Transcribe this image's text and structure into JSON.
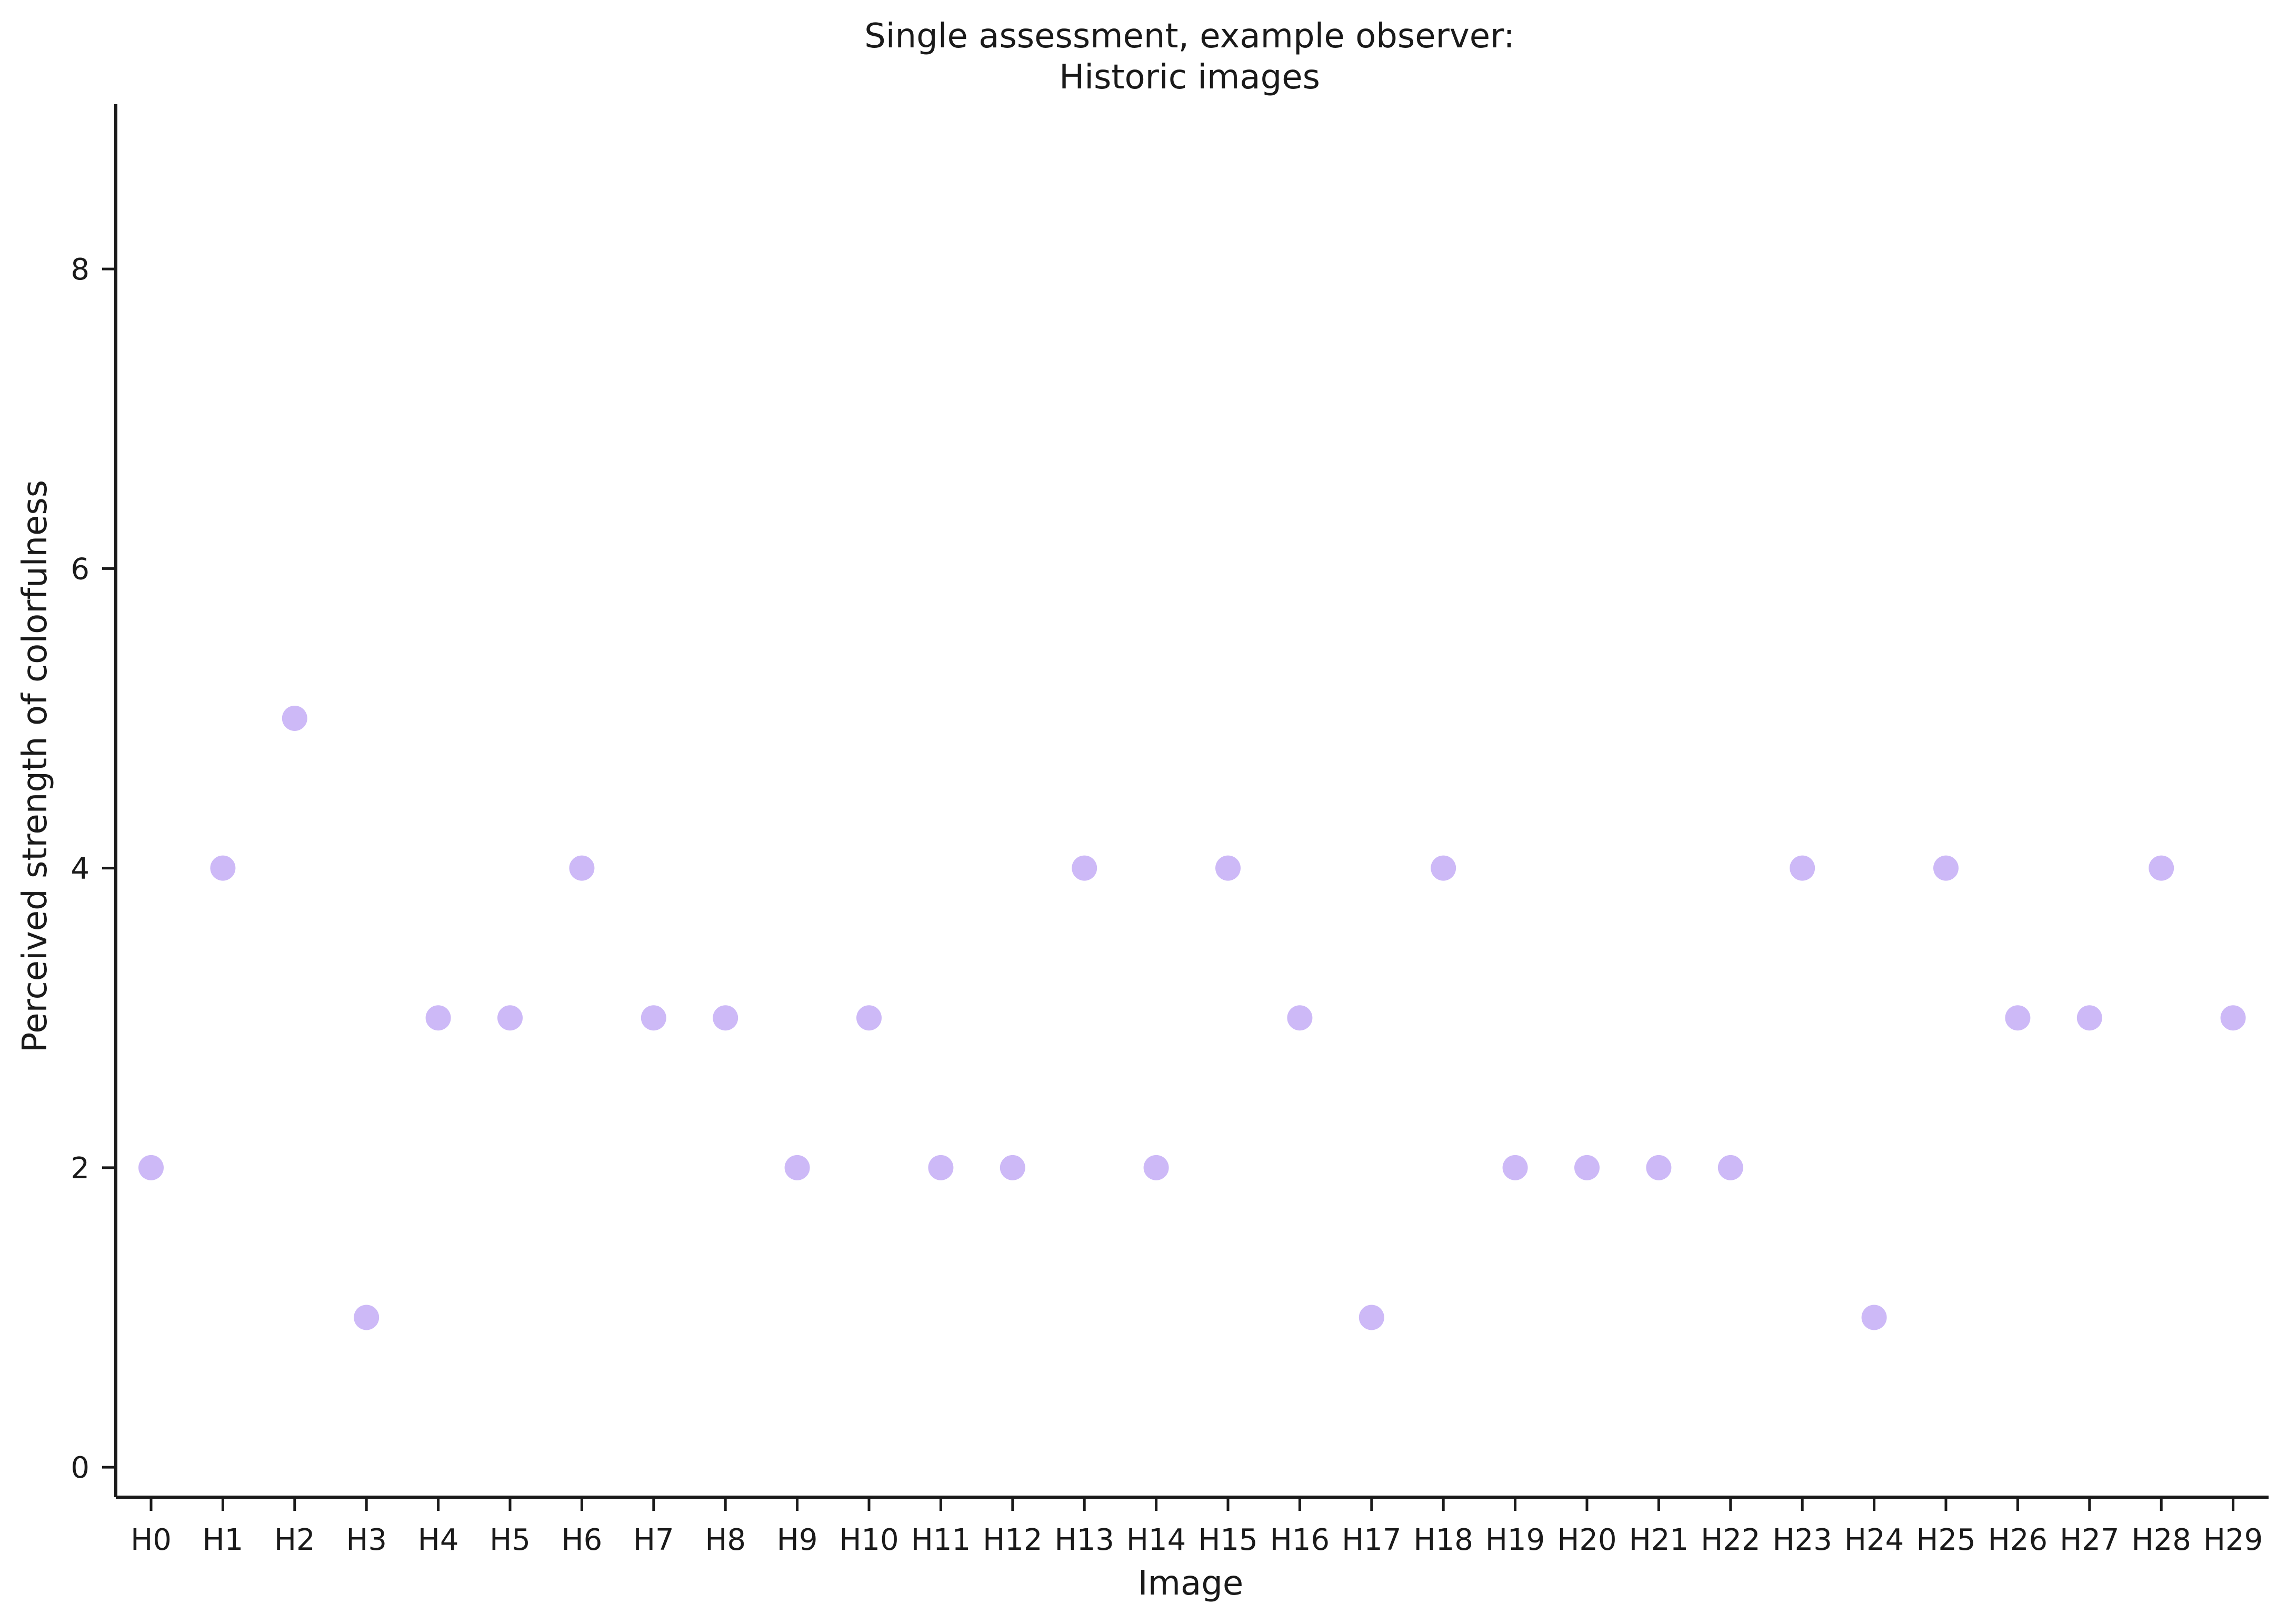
{
  "chart_data": {
    "type": "scatter",
    "title_lines": [
      "Single assessment, example observer:",
      "Historic images"
    ],
    "xlabel": "Image",
    "ylabel": "Perceived strength of colorfulness",
    "categories": [
      "H0",
      "H1",
      "H2",
      "H3",
      "H4",
      "H5",
      "H6",
      "H7",
      "H8",
      "H9",
      "H10",
      "H11",
      "H12",
      "H13",
      "H14",
      "H15",
      "H16",
      "H17",
      "H18",
      "H19",
      "H20",
      "H21",
      "H22",
      "H23",
      "H24",
      "H25",
      "H26",
      "H27",
      "H28",
      "H29"
    ],
    "values": [
      2,
      4,
      5,
      1,
      3,
      3,
      4,
      3,
      3,
      2,
      3,
      2,
      2,
      4,
      2,
      4,
      3,
      1,
      4,
      2,
      2,
      2,
      2,
      4,
      1,
      4,
      3,
      3,
      4,
      3
    ],
    "ylim": [
      -0.2,
      9.1
    ],
    "yticks": [
      0,
      2,
      4,
      6,
      8
    ],
    "grid": false,
    "point_color": "#cdb9f7"
  }
}
